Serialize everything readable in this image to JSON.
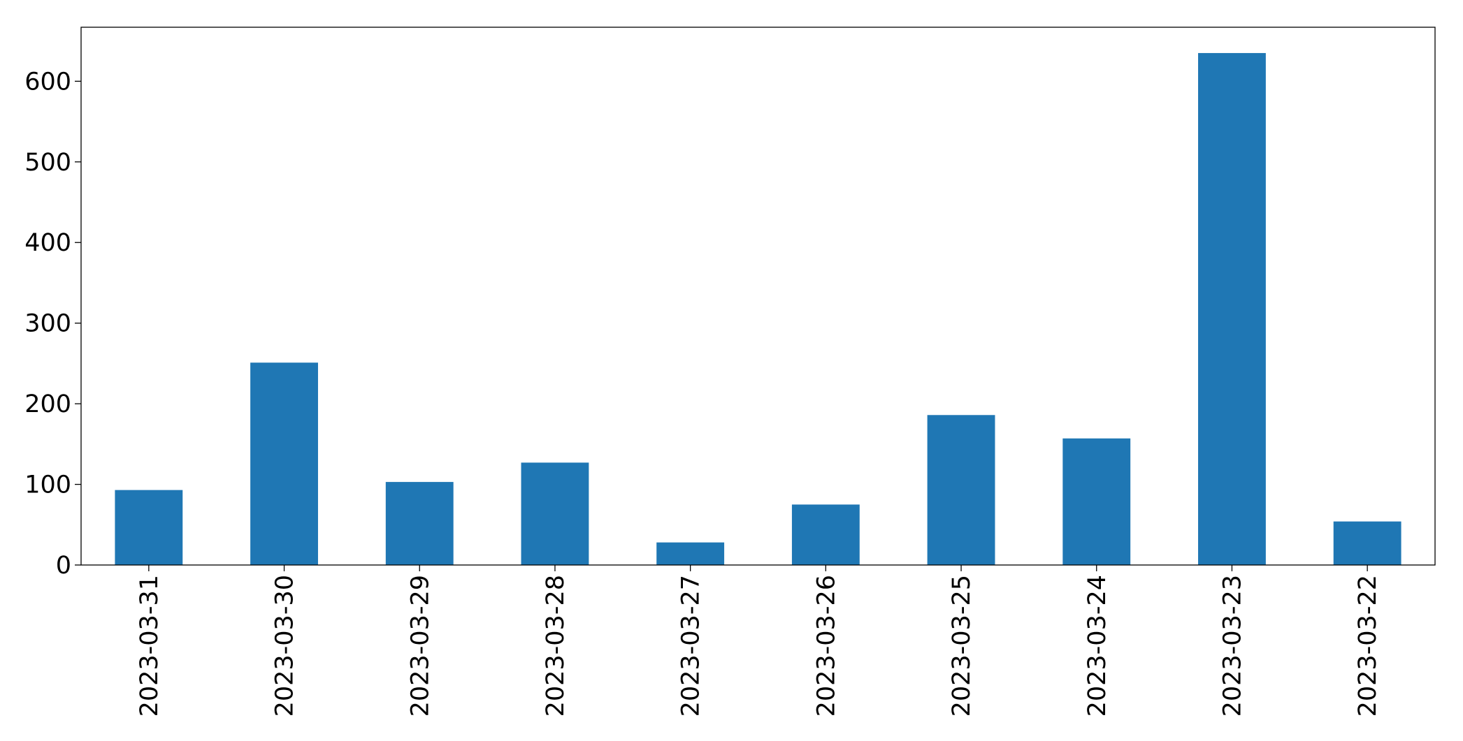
{
  "chart_data": {
    "type": "bar",
    "categories": [
      "2023-03-31",
      "2023-03-30",
      "2023-03-29",
      "2023-03-28",
      "2023-03-27",
      "2023-03-26",
      "2023-03-25",
      "2023-03-24",
      "2023-03-23",
      "2023-03-22"
    ],
    "values": [
      93,
      251,
      103,
      127,
      28,
      75,
      186,
      157,
      635,
      54
    ],
    "color": "#1f77b4",
    "ylim": [
      0,
      667
    ],
    "yticks": [
      0,
      100,
      200,
      300,
      400,
      500,
      600
    ],
    "grid": false
  }
}
